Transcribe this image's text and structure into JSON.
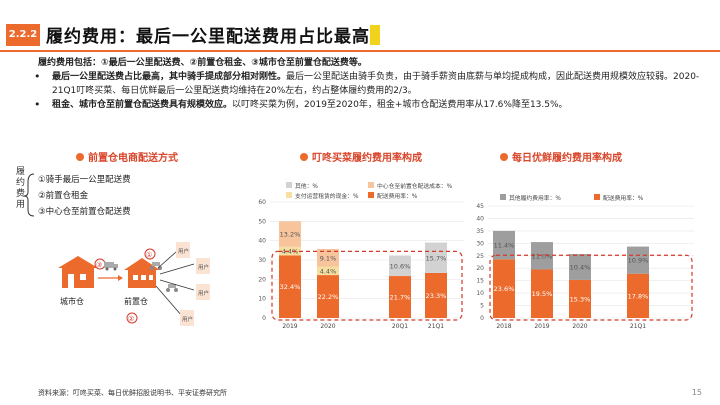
{
  "header": {
    "section_number": "2.2.2",
    "title": "履约费用：最后一公里配送费用占比最高"
  },
  "bullets": {
    "intro": "履约费用包括：①最后一公里配送费、②前置仓租金、③城市仓至前置仓配送费等。",
    "p1_bold": "最后一公里配送费占比最高，其中骑手提成部分相对刚性。",
    "p1_rest": "最后一公里配送由骑手负责，由于骑手薪资由底薪与单均提成构成，因此配送费用规模效应较弱。2020-21Q1叮咚买菜、每日优鲜最后一公里配送费均维持在20%左右，约占整体履约费用的2/3。",
    "p2_bold": "租金、城市仓至前置仓配送费具有规模效应。",
    "p2_rest": "以叮咚买菜为例，2019至2020年，租金+城市仓配送费用率从17.6%降至13.5%。"
  },
  "left_diagram": {
    "heading": "前置仓电商配送方式",
    "bracket_label": "履约费用",
    "items": [
      "①骑手最后一公里配送费",
      "②前置仓租金",
      "③中心仓至前置仓配送费"
    ],
    "node_city": "城市仓",
    "node_front": "前置仓",
    "user_label": "用户",
    "marker_1": "①",
    "marker_2": "②",
    "marker_3": "③"
  },
  "colors": {
    "accent": "#ec6a2c",
    "gray": "#9e9e9e",
    "gray_light": "#d2d2d2",
    "yellow_light": "#f6dfa0",
    "orange_light": "#f7c49c",
    "dashed_red": "#d23a2a"
  },
  "chart_data": [
    {
      "type": "bar",
      "stacked": true,
      "title": "叮咚买菜履约费用率构成",
      "categories": [
        "2019",
        "2020",
        "20Q1",
        "21Q1"
      ],
      "series": [
        {
          "name": "配送费用率：%",
          "values": [
            32.4,
            22.2,
            21.7,
            23.3
          ],
          "color": "#ec6a2c",
          "labels": [
            "32.4%",
            "22.2%",
            "21.7%",
            "23.3%"
          ]
        },
        {
          "name": "支付运营租赁的现金：%",
          "values": [
            4.4,
            4.4,
            null,
            null
          ],
          "color": "#f6dfa0",
          "labels": [
            "4.4%",
            "4.4%",
            "",
            ""
          ]
        },
        {
          "name": "中心仓至前置仓配送成本：%",
          "values": [
            13.2,
            9.1,
            null,
            null
          ],
          "color": "#f7c49c",
          "labels": [
            "13.2%",
            "9.1%",
            "",
            ""
          ]
        },
        {
          "name": "其他：%",
          "values": [
            null,
            null,
            10.6,
            15.7
          ],
          "color": "#d2d2d2",
          "labels": [
            "",
            "",
            "10.6%",
            "15.7%"
          ]
        }
      ],
      "ylim": [
        0,
        60
      ],
      "yticks": [
        "0",
        "10",
        "20",
        "30",
        "40",
        "50",
        "60"
      ],
      "legend": "top"
    },
    {
      "type": "bar",
      "stacked": true,
      "title": "每日优鲜履约费用率构成",
      "categories": [
        "2018",
        "2019",
        "2020",
        "21Q1"
      ],
      "series": [
        {
          "name": "配送费用率：%",
          "values": [
            23.6,
            19.5,
            15.3,
            17.8
          ],
          "color": "#ec6a2c",
          "labels": [
            "23.6%",
            "19.5%",
            "15.3%",
            "17.8%"
          ]
        },
        {
          "name": "其他履约费用率：%",
          "values": [
            11.4,
            11.0,
            10.4,
            10.9
          ],
          "color": "#9e9e9e",
          "labels": [
            "11.4%",
            "11.0%",
            "10.4%",
            "10.9%"
          ]
        }
      ],
      "ylim": [
        0,
        45
      ],
      "yticks": [
        "0",
        "5",
        "10",
        "15",
        "20",
        "25",
        "30",
        "35",
        "40",
        "45"
      ],
      "legend": "top"
    }
  ],
  "footer": {
    "source": "资料来源：叮咚买菜、每日优鲜招股说明书、平安证券研究所",
    "page": "15"
  }
}
